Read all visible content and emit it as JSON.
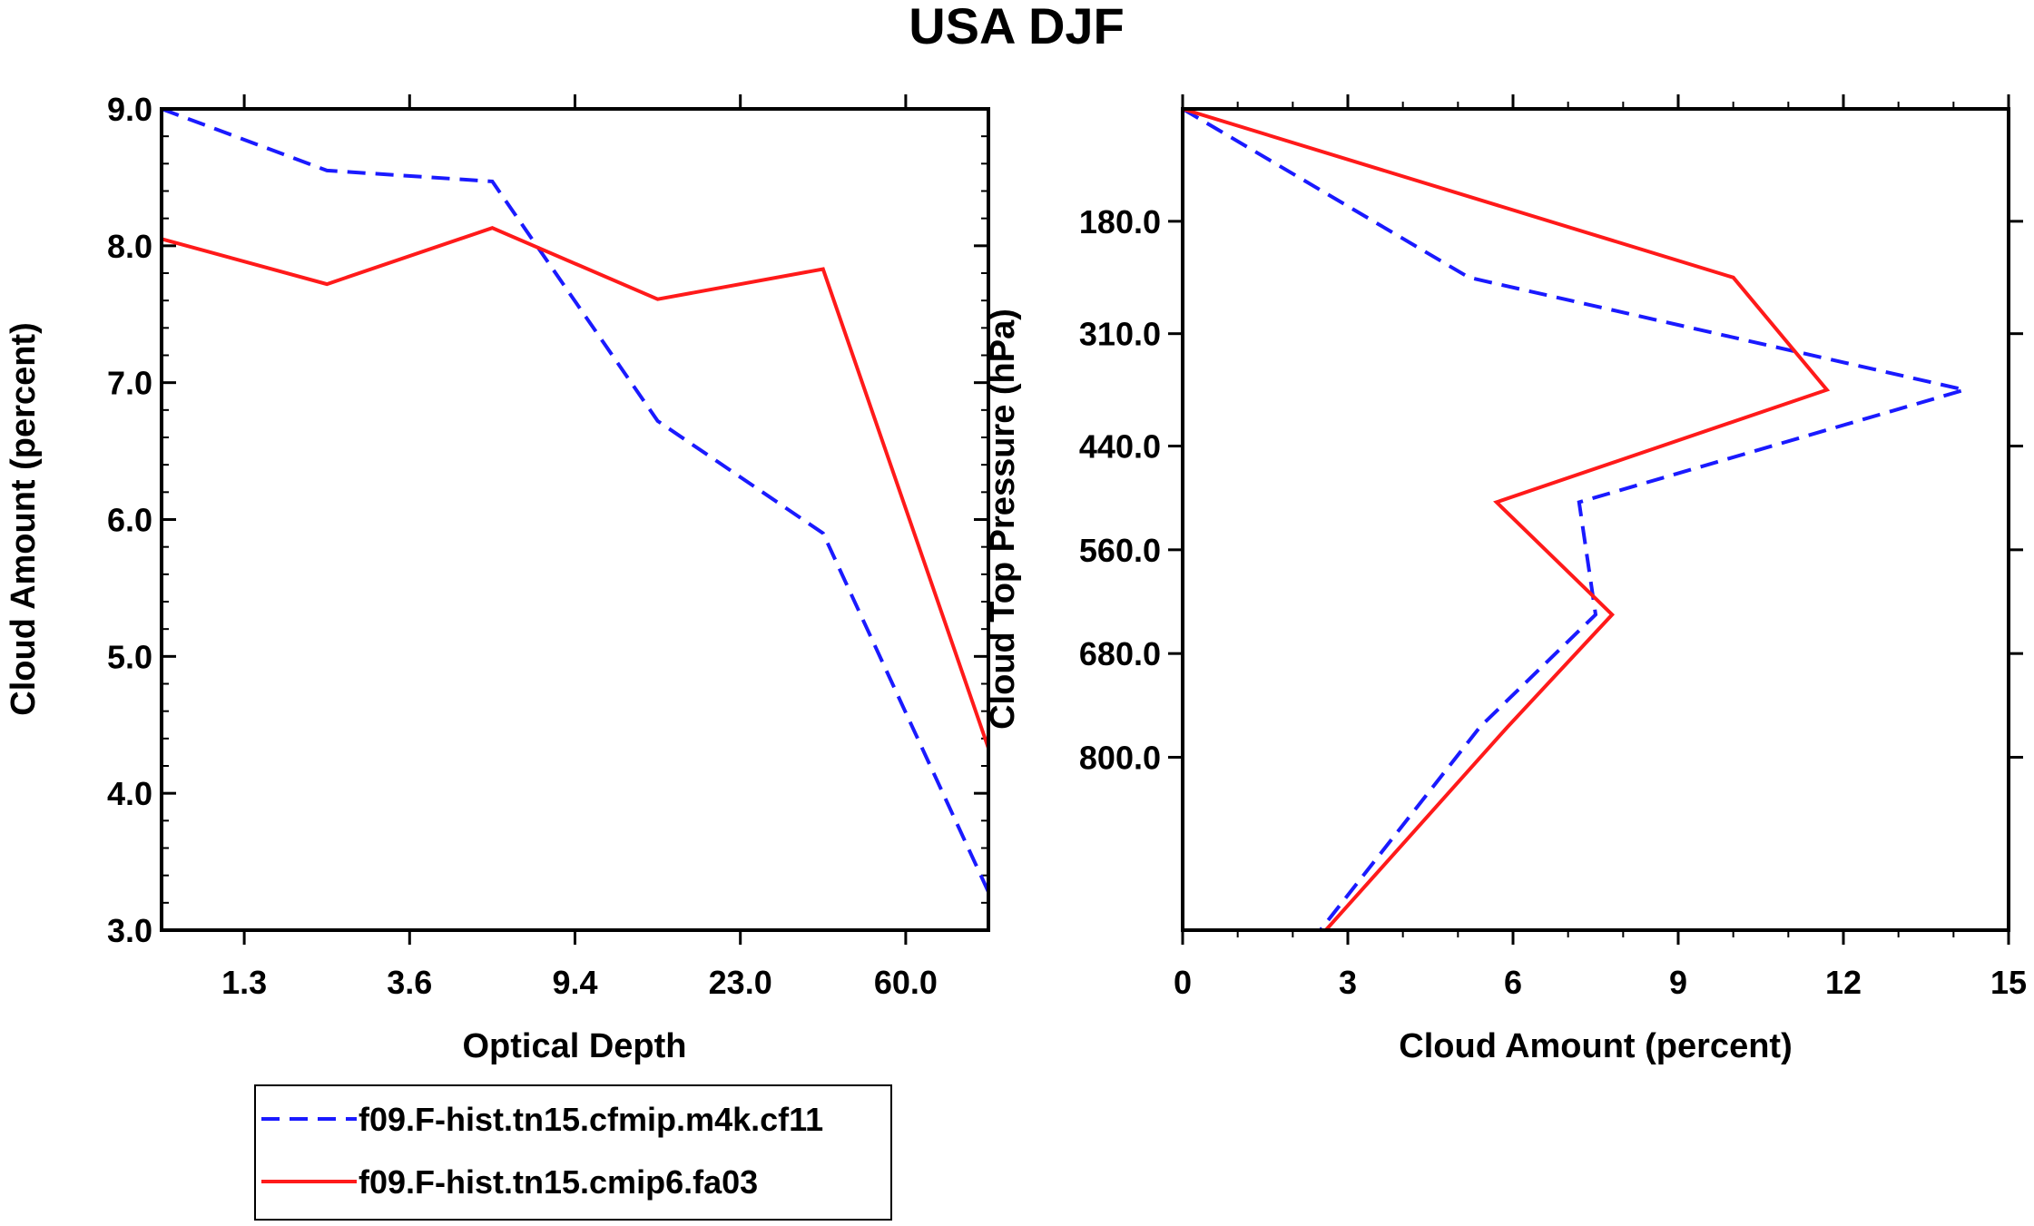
{
  "title": "USA DJF",
  "chart_data": [
    {
      "type": "line",
      "xlabel": "Optical Depth",
      "ylabel": "Cloud Amount (percent)",
      "x_tick_labels": [
        "1.3",
        "3.6",
        "9.4",
        "23.0",
        "60.0"
      ],
      "x_tick_positions": [
        0.5,
        1.5,
        2.5,
        3.5,
        4.5
      ],
      "xlim": [
        0,
        5
      ],
      "ylim": [
        3.0,
        9.0
      ],
      "y_ticks": [
        3.0,
        4.0,
        5.0,
        6.0,
        7.0,
        8.0,
        9.0
      ],
      "y_tick_labels": [
        "3.0",
        "4.0",
        "5.0",
        "6.0",
        "7.0",
        "8.0",
        "9.0"
      ],
      "series": [
        {
          "name": "f09.F-hist.tn15.cfmip.m4k.cf11",
          "color": "#1a1aff",
          "style": "dashed",
          "x": [
            0,
            1,
            2,
            3,
            4,
            5
          ],
          "values": [
            9.0,
            8.55,
            8.47,
            6.72,
            5.9,
            3.28
          ]
        },
        {
          "name": "f09.F-hist.tn15.cmip6.fa03",
          "color": "#ff1a1a",
          "style": "solid",
          "x": [
            0,
            1,
            2,
            3,
            4,
            5
          ],
          "values": [
            8.05,
            7.72,
            8.13,
            7.61,
            7.83,
            4.33
          ]
        }
      ]
    },
    {
      "type": "line",
      "xlabel": "Cloud Amount (percent)",
      "ylabel": "Cloud Top Pressure (hPa)",
      "xlim": [
        0,
        15
      ],
      "x_ticks": [
        0,
        3,
        6,
        9,
        12,
        15
      ],
      "x_tick_labels": [
        "0",
        "3",
        "6",
        "9",
        "12",
        "15"
      ],
      "ylim": [
        50,
        1000
      ],
      "y_reversed": true,
      "y_ticks": [
        180,
        310,
        440,
        560,
        680,
        800
      ],
      "y_tick_labels": [
        "180.0",
        "310.0",
        "440.0",
        "560.0",
        "680.0",
        "800.0"
      ],
      "series": [
        {
          "name": "f09.F-hist.tn15.cfmip.m4k.cf11",
          "color": "#1a1aff",
          "style": "dashed",
          "x": [
            0.0,
            5.2,
            14.2,
            7.2,
            7.5,
            5.4,
            2.5
          ],
          "y": [
            50,
            245,
            375,
            505,
            635,
            765,
            1000
          ]
        },
        {
          "name": "f09.F-hist.tn15.cmip6.fa03",
          "color": "#ff1a1a",
          "style": "solid",
          "x": [
            0.0,
            10.0,
            11.7,
            5.7,
            7.8,
            5.9,
            2.6
          ],
          "y": [
            50,
            245,
            375,
            505,
            635,
            765,
            1000
          ]
        }
      ]
    }
  ],
  "legend": {
    "items": [
      {
        "label": "f09.F-hist.tn15.cfmip.m4k.cf11",
        "color": "#1a1aff",
        "style": "dashed"
      },
      {
        "label": "f09.F-hist.tn15.cmip6.fa03",
        "color": "#ff1a1a",
        "style": "solid"
      }
    ]
  }
}
